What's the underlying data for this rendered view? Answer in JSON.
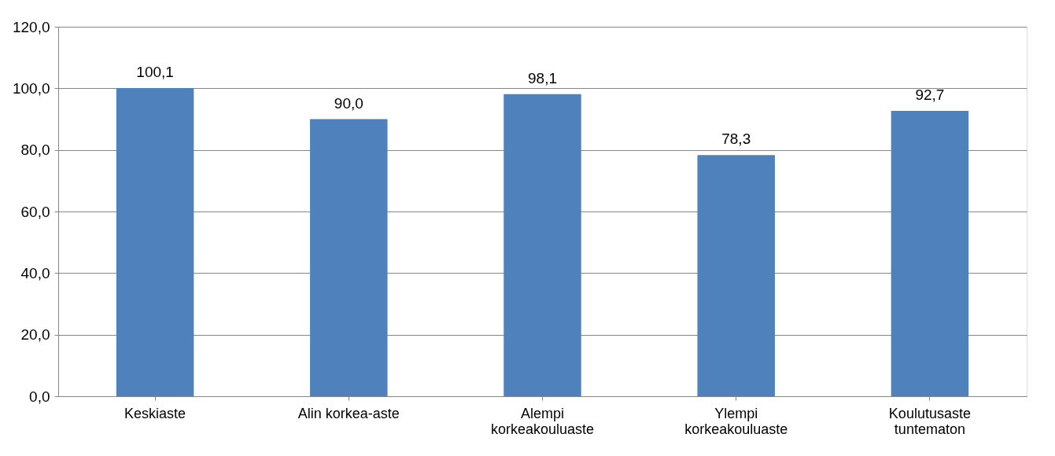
{
  "chart_data": {
    "type": "bar",
    "categories": [
      "Keskiaste",
      "Alin korkea-aste",
      "Alempi korkeakouluaste",
      "Ylempi korkeakouluaste",
      "Koulutusaste tuntematon"
    ],
    "values": [
      100.1,
      90.0,
      98.1,
      78.3,
      92.7
    ],
    "value_labels": [
      "100,1",
      "90,0",
      "98,1",
      "78,3",
      "92,7"
    ],
    "color": "#4f81bd",
    "ylim": [
      0,
      120
    ],
    "yticks": [
      {
        "value": 0,
        "label": "0,0"
      },
      {
        "value": 20,
        "label": "20,0"
      },
      {
        "value": 40,
        "label": "40,0"
      },
      {
        "value": 60,
        "label": "60,0"
      },
      {
        "value": 80,
        "label": "80,0"
      },
      {
        "value": 100,
        "label": "100,0"
      },
      {
        "value": 120,
        "label": "120,0"
      }
    ],
    "grid": "y"
  }
}
